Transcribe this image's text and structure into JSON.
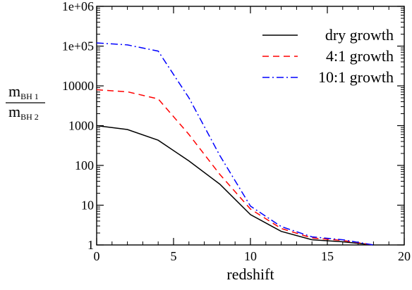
{
  "chart_data": {
    "type": "line",
    "xlabel": "redshift",
    "ylabel": {
      "numerator": "m",
      "numerator_sub": "BH 1",
      "denominator": "m",
      "denominator_sub": "BH 2"
    },
    "xlim": [
      0,
      20
    ],
    "ylim": [
      1,
      1000000
    ],
    "yscale": "log",
    "xticks": [
      0,
      5,
      10,
      15,
      20
    ],
    "xtick_labels": [
      "0",
      "5",
      "10",
      "15",
      "20"
    ],
    "yticks": [
      1,
      10,
      100,
      1000,
      10000,
      100000,
      1000000
    ],
    "ytick_labels": [
      "1",
      "10",
      "100",
      "1000",
      "10000",
      "1e+05",
      "1e+06"
    ],
    "grid": false,
    "legend_position": "top-right",
    "series": [
      {
        "name": "dry growth",
        "color": "#000000",
        "dash": "solid",
        "x": [
          0,
          2,
          4,
          6,
          8,
          10,
          12,
          14,
          16,
          18
        ],
        "y": [
          1000,
          800,
          430,
          130,
          34,
          5.8,
          2.2,
          1.35,
          1.2,
          1.0
        ]
      },
      {
        "name": "4:1 growth",
        "color": "#ff0000",
        "dash": "dashed",
        "x": [
          0,
          2,
          4,
          6,
          8,
          10,
          12,
          14,
          16,
          18
        ],
        "y": [
          8000,
          7100,
          4700,
          600,
          60,
          8,
          2.6,
          1.5,
          1.3,
          1.0
        ]
      },
      {
        "name": "10:1 growth",
        "color": "#0000ff",
        "dash": "dashdot",
        "x": [
          0,
          2,
          4,
          6,
          8,
          10,
          12,
          14,
          16,
          18
        ],
        "y": [
          120000,
          107000,
          75000,
          5000,
          180,
          9.5,
          2.9,
          1.6,
          1.35,
          1.0
        ]
      }
    ]
  }
}
